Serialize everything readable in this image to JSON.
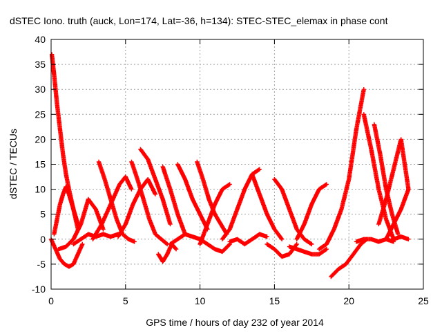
{
  "chart_data": {
    "type": "scatter",
    "title": "dSTEC Iono. truth (auck, Lon=174, Lat=-36, h=134): STEC-STEC_elemax in phase cont",
    "xlabel": "GPS time / hours of day 232 of year 2014",
    "ylabel": "dSTEC  / TECUs",
    "xlim": [
      0,
      25
    ],
    "ylim": [
      -10,
      40
    ],
    "xticks": [
      0,
      5,
      10,
      15,
      20,
      25
    ],
    "yticks": [
      -10,
      -5,
      0,
      5,
      10,
      15,
      20,
      25,
      30,
      35,
      40
    ],
    "grid": true,
    "legend": "none",
    "marker": "plus",
    "color": "#ff0000",
    "series": [
      {
        "x": [
          0.05,
          0.2,
          0.4,
          0.6,
          0.8,
          1.0,
          1.2,
          1.5,
          1.8
        ],
        "y": [
          37,
          33,
          27,
          22,
          17,
          13,
          10,
          6,
          3
        ]
      },
      {
        "x": [
          0.0,
          0.3,
          0.6,
          0.9,
          1.2,
          1.5,
          1.8,
          2.1
        ],
        "y": [
          0,
          -2,
          -4,
          -5,
          -5.5,
          -5,
          -3,
          -1
        ]
      },
      {
        "x": [
          0.2,
          0.4,
          0.6,
          0.8,
          1.0,
          1.2,
          1.5,
          1.8
        ],
        "y": [
          1,
          4,
          7,
          9,
          10.5,
          9,
          6,
          2
        ]
      },
      {
        "x": [
          0.5,
          1.0,
          1.5,
          2.0,
          2.5,
          3.0,
          3.5
        ],
        "y": [
          -2,
          -1.5,
          0,
          3,
          8,
          6,
          2
        ]
      },
      {
        "x": [
          1.5,
          2.0,
          2.5,
          3.0,
          3.5,
          4.0,
          4.5
        ],
        "y": [
          -1,
          0,
          1,
          0.5,
          1,
          0.5,
          1
        ]
      },
      {
        "x": [
          3.2,
          3.6,
          4.0,
          4.4,
          4.8,
          5.2,
          5.6
        ],
        "y": [
          15.5,
          12,
          8,
          4,
          1,
          0,
          -0.5
        ]
      },
      {
        "x": [
          2.8,
          3.4,
          4.0,
          4.6,
          5.0,
          5.4
        ],
        "y": [
          0,
          3,
          7,
          11,
          12.5,
          10
        ]
      },
      {
        "x": [
          5.4,
          5.8,
          6.2,
          6.6,
          7.0,
          7.4,
          7.8
        ],
        "y": [
          15.5,
          12,
          8,
          4,
          1,
          0,
          -1
        ]
      },
      {
        "x": [
          4.5,
          5.0,
          5.5,
          6.0,
          6.5,
          7.0
        ],
        "y": [
          0.5,
          3,
          7,
          10,
          12,
          9
        ]
      },
      {
        "x": [
          6.0,
          6.5,
          7.0,
          7.5,
          8.0
        ],
        "y": [
          18,
          16,
          12,
          8,
          3
        ]
      },
      {
        "x": [
          7.2,
          7.5,
          7.8,
          8.1,
          8.4
        ],
        "y": [
          -3,
          -4.5,
          -3,
          -1,
          -2
        ]
      },
      {
        "x": [
          7.5,
          8.0,
          8.5,
          9.0
        ],
        "y": [
          14.5,
          10,
          5,
          1
        ]
      },
      {
        "x": [
          8.5,
          9.0,
          9.5,
          10.0,
          10.5
        ],
        "y": [
          15,
          12,
          8,
          5,
          2
        ]
      },
      {
        "x": [
          9.8,
          10.2,
          10.6,
          11.0,
          11.4,
          11.8
        ],
        "y": [
          15.5,
          12,
          8,
          5,
          3,
          1
        ]
      },
      {
        "x": [
          8.0,
          8.5,
          9.0,
          9.5,
          10.0,
          10.5,
          11.0,
          11.5,
          12.0
        ],
        "y": [
          -1,
          0,
          1,
          0.5,
          0,
          -1,
          -2,
          -2.5,
          -1
        ]
      },
      {
        "x": [
          10.0,
          10.5,
          11.0,
          11.5,
          12.0
        ],
        "y": [
          -1,
          3,
          7,
          10,
          11
        ]
      },
      {
        "x": [
          11.5,
          12.0,
          12.5,
          13.0,
          13.5,
          14.0
        ],
        "y": [
          0,
          2,
          6,
          10,
          13,
          14
        ]
      },
      {
        "x": [
          12.0,
          12.5,
          13.0,
          13.5,
          14.0,
          14.5
        ],
        "y": [
          -0.5,
          0,
          -1,
          0,
          1,
          0.5
        ]
      },
      {
        "x": [
          13.5,
          14.0,
          14.5,
          15.0,
          15.5
        ],
        "y": [
          13,
          9,
          5,
          2,
          0
        ]
      },
      {
        "x": [
          15.0,
          15.5,
          16.0,
          16.5,
          17.0,
          17.5
        ],
        "y": [
          12,
          10,
          6,
          2,
          0,
          -1
        ]
      },
      {
        "x": [
          14.5,
          15.0,
          15.5,
          16.0,
          16.5
        ],
        "y": [
          -1,
          -2,
          -3.5,
          -3,
          -1
        ]
      },
      {
        "x": [
          16.0,
          16.5,
          17.0,
          17.5,
          18.0,
          18.5
        ],
        "y": [
          -1.5,
          -2,
          -2.5,
          -3,
          -3,
          -2
        ]
      },
      {
        "x": [
          16.5,
          17.0,
          17.5,
          18.0,
          18.5
        ],
        "y": [
          0,
          3,
          7,
          10,
          11
        ]
      },
      {
        "x": [
          18.0,
          18.5,
          19.0,
          19.5,
          20.0,
          20.5,
          21.0
        ],
        "y": [
          -2,
          -1,
          2,
          6,
          12,
          22,
          30
        ]
      },
      {
        "x": [
          18.8,
          19.3,
          19.8,
          20.3,
          20.8,
          21.2
        ],
        "y": [
          -7.5,
          -6,
          -5,
          -3,
          -1,
          0
        ]
      },
      {
        "x": [
          20.5,
          21.0,
          21.5,
          22.0,
          22.5,
          23.0
        ],
        "y": [
          -0.5,
          0,
          0,
          -0.5,
          0,
          -0.5
        ]
      },
      {
        "x": [
          21.0,
          21.5,
          22.0,
          22.5,
          23.0
        ],
        "y": [
          25,
          18,
          10,
          4,
          0
        ]
      },
      {
        "x": [
          21.7,
          22.1,
          22.5,
          22.9,
          23.3
        ],
        "y": [
          23,
          17,
          10,
          5,
          1
        ]
      },
      {
        "x": [
          22.0,
          22.5,
          23.0,
          23.5,
          24.0
        ],
        "y": [
          3,
          8,
          14,
          20,
          10
        ]
      },
      {
        "x": [
          22.5,
          23.0,
          23.5,
          24.0
        ],
        "y": [
          0,
          3,
          6,
          10
        ]
      },
      {
        "x": [
          23.0,
          23.5,
          24.0
        ],
        "y": [
          0,
          0.5,
          0
        ]
      }
    ]
  }
}
